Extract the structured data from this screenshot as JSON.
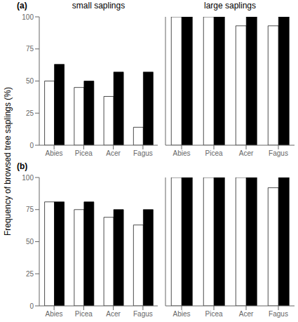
{
  "chart_data": [
    {
      "type": "bar",
      "title": "small saplings",
      "annotations": [
        "(a)"
      ],
      "ylabel": "Frequency of browsed tree saplings (%)",
      "categories": [
        "Abies",
        "Picea",
        "Acer",
        "Fagus"
      ],
      "series": [
        {
          "color": "#ffffff",
          "values": [
            50,
            45,
            38,
            14
          ]
        },
        {
          "color": "#000000",
          "values": [
            63,
            50,
            57,
            57
          ]
        }
      ],
      "ylim": [
        0,
        100
      ],
      "yticks": [
        0,
        25,
        50,
        75,
        100
      ],
      "grid": false
    },
    {
      "type": "bar",
      "title": "large saplings",
      "categories": [
        "Abies",
        "Picea",
        "Acer",
        "Fagus"
      ],
      "series": [
        {
          "color": "#ffffff",
          "values": [
            100,
            100,
            93,
            93
          ]
        },
        {
          "color": "#000000",
          "values": [
            100,
            100,
            100,
            100
          ]
        }
      ],
      "ylim": [
        0,
        100
      ],
      "yticks": [
        0,
        25,
        50,
        75,
        100
      ],
      "grid": false,
      "tick_labels": "x"
    },
    {
      "type": "bar",
      "annotations": [
        "(b)"
      ],
      "categories": [
        "Abies",
        "Picea",
        "Acer",
        "Fagus"
      ],
      "series": [
        {
          "color": "#ffffff",
          "values": [
            81,
            75,
            69,
            63
          ]
        },
        {
          "color": "#000000",
          "values": [
            81,
            81,
            75,
            75
          ]
        }
      ],
      "ylim": [
        0,
        100
      ],
      "yticks": [
        0,
        25,
        50,
        75,
        100
      ],
      "grid": false
    },
    {
      "type": "bar",
      "categories": [
        "Abies",
        "Picea",
        "Acer",
        "Fagus"
      ],
      "series": [
        {
          "color": "#ffffff",
          "values": [
            100,
            100,
            100,
            92
          ]
        },
        {
          "color": "#000000",
          "values": [
            100,
            100,
            100,
            100
          ]
        }
      ],
      "ylim": [
        0,
        100
      ],
      "yticks": [
        0,
        25,
        50,
        75,
        100
      ],
      "grid": false,
      "tick_labels": "x"
    }
  ]
}
